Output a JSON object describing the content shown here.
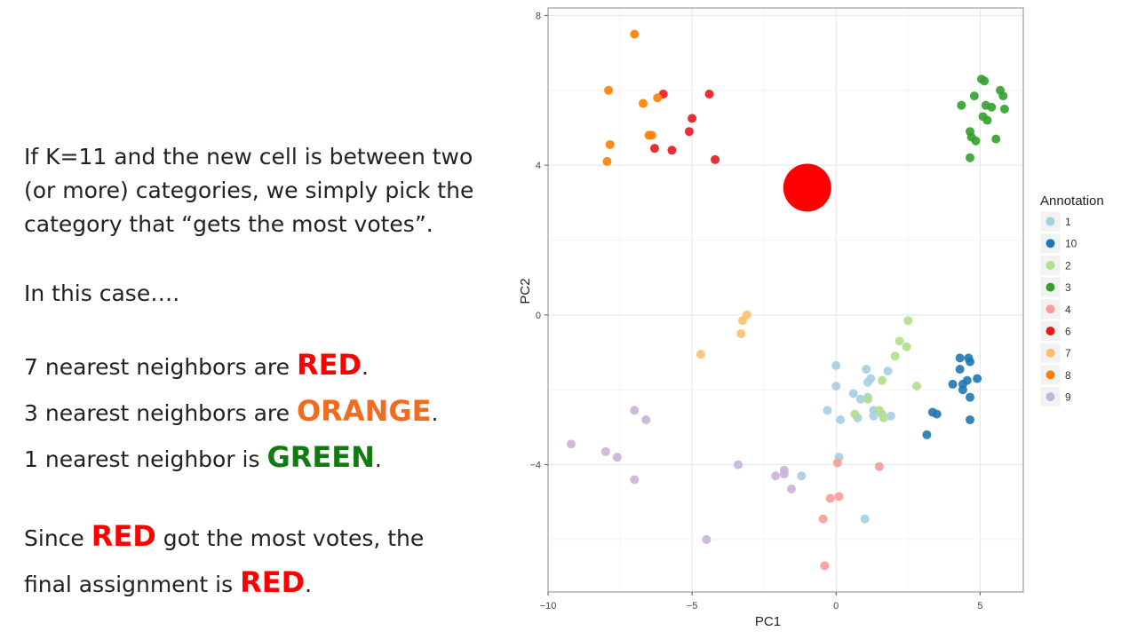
{
  "text": {
    "p1": "If K=11 and the new cell is between two (or more) categories, we simply pick the category that “gets the most votes”.",
    "p2": "In this case….",
    "l1_pre": "7 nearest neighbors are ",
    "l1_word": "RED",
    "l1_post": ".",
    "l2_pre": "3 nearest neighbors are ",
    "l2_word": "ORANGE",
    "l2_post": ".",
    "l3_pre": "1 nearest neighbor is ",
    "l3_word": "GREEN",
    "l3_post": ".",
    "l4_pre": "Since ",
    "l4_word": "RED",
    "l4_post": " got the most votes, the",
    "l5_pre": "final assignment is ",
    "l5_word": "RED",
    "l5_post": "."
  },
  "colors": {
    "red_word": "#ff0000",
    "orange_word": "#f26b21",
    "green_word": "#117a11",
    "new_cell": "#ff0000"
  },
  "chart_data": {
    "type": "scatter",
    "xlabel": "PC1",
    "ylabel": "PC2",
    "xlim": [
      -10,
      6.5
    ],
    "ylim": [
      -7.4,
      8.2
    ],
    "xticks": [
      -10,
      -5,
      0,
      5
    ],
    "yticks": [
      -4,
      0,
      4,
      8
    ],
    "grid": true,
    "legend": {
      "title": "Annotation",
      "position": "right"
    },
    "new_cell": {
      "x": -1.0,
      "y": 3.4
    },
    "series": [
      {
        "name": "1",
        "color": "#a6cee3",
        "points": [
          [
            0,
            -1.35
          ],
          [
            0,
            -1.9
          ],
          [
            1.05,
            -1.45
          ],
          [
            1.2,
            -1.7
          ],
          [
            1.1,
            -1.8
          ],
          [
            1.8,
            -1.5
          ],
          [
            0.6,
            -2.1
          ],
          [
            0.85,
            -2.25
          ],
          [
            1.1,
            -2.2
          ],
          [
            -0.3,
            -2.55
          ],
          [
            0.15,
            -2.8
          ],
          [
            0.75,
            -2.75
          ],
          [
            1.3,
            -2.55
          ],
          [
            1.3,
            -2.7
          ],
          [
            1.6,
            -2.65
          ],
          [
            1.9,
            -2.7
          ],
          [
            0.1,
            -3.8
          ],
          [
            -1.2,
            -4.3
          ],
          [
            1.0,
            -5.45
          ]
        ]
      },
      {
        "name": "10",
        "color": "#1f78b4",
        "points": [
          [
            4.3,
            -1.15
          ],
          [
            4.6,
            -1.15
          ],
          [
            4.65,
            -1.25
          ],
          [
            4.3,
            -1.45
          ],
          [
            4.05,
            -1.85
          ],
          [
            4.4,
            -1.85
          ],
          [
            4.55,
            -1.75
          ],
          [
            4.9,
            -1.7
          ],
          [
            4.4,
            -2.0
          ],
          [
            4.65,
            -2.2
          ],
          [
            3.35,
            -2.6
          ],
          [
            3.5,
            -2.65
          ],
          [
            4.65,
            -2.8
          ],
          [
            3.15,
            -3.2
          ]
        ]
      },
      {
        "name": "2",
        "color": "#b2df8a",
        "points": [
          [
            2.5,
            -0.15
          ],
          [
            2.2,
            -0.7
          ],
          [
            2.45,
            -0.85
          ],
          [
            2.05,
            -1.1
          ],
          [
            1.6,
            -1.75
          ],
          [
            2.8,
            -1.9
          ],
          [
            1.1,
            -2.25
          ],
          [
            0.65,
            -2.65
          ],
          [
            1.5,
            -2.55
          ],
          [
            1.65,
            -2.75
          ]
        ]
      },
      {
        "name": "3",
        "color": "#33a02c",
        "points": [
          [
            5.05,
            6.3
          ],
          [
            5.15,
            6.25
          ],
          [
            5.7,
            6.0
          ],
          [
            5.8,
            5.85
          ],
          [
            4.8,
            5.85
          ],
          [
            4.35,
            5.6
          ],
          [
            5.2,
            5.6
          ],
          [
            5.4,
            5.55
          ],
          [
            5.85,
            5.5
          ],
          [
            5.1,
            5.3
          ],
          [
            5.25,
            5.2
          ],
          [
            4.65,
            4.9
          ],
          [
            4.7,
            4.75
          ],
          [
            4.85,
            4.65
          ],
          [
            5.55,
            4.7
          ],
          [
            4.65,
            4.2
          ]
        ]
      },
      {
        "name": "4",
        "color": "#fb9a99",
        "points": [
          [
            0.05,
            -3.95
          ],
          [
            1.5,
            -4.05
          ],
          [
            -0.2,
            -4.9
          ],
          [
            0.1,
            -4.85
          ],
          [
            -0.45,
            -5.45
          ],
          [
            -0.4,
            -6.7
          ]
        ]
      },
      {
        "name": "6",
        "color": "#e31a1c",
        "points": [
          [
            -6.0,
            5.9
          ],
          [
            -4.4,
            5.9
          ],
          [
            -5.0,
            5.25
          ],
          [
            -5.1,
            4.9
          ],
          [
            -6.3,
            4.45
          ],
          [
            -5.7,
            4.4
          ],
          [
            -4.2,
            4.15
          ]
        ]
      },
      {
        "name": "7",
        "color": "#fdbf6f",
        "points": [
          [
            -3.1,
            0.0
          ],
          [
            -3.25,
            -0.15
          ],
          [
            -3.3,
            -0.5
          ],
          [
            -4.7,
            -1.05
          ]
        ]
      },
      {
        "name": "8",
        "color": "#ff7f00",
        "points": [
          [
            -7.0,
            7.5
          ],
          [
            -7.9,
            6.0
          ],
          [
            -6.2,
            5.8
          ],
          [
            -6.7,
            5.65
          ],
          [
            -6.5,
            4.8
          ],
          [
            -6.4,
            4.8
          ],
          [
            -7.85,
            4.55
          ],
          [
            -7.95,
            4.1
          ]
        ]
      },
      {
        "name": "9",
        "color": "#cab2d6",
        "points": [
          [
            -7.0,
            -2.55
          ],
          [
            -6.6,
            -2.8
          ],
          [
            -9.2,
            -3.45
          ],
          [
            -8.0,
            -3.65
          ],
          [
            -7.6,
            -3.8
          ],
          [
            -3.4,
            -4.0
          ],
          [
            -1.8,
            -4.15
          ],
          [
            -1.8,
            -4.25
          ],
          [
            -2.1,
            -4.3
          ],
          [
            -7.0,
            -4.4
          ],
          [
            -1.55,
            -4.65
          ],
          [
            -4.5,
            -6.0
          ]
        ]
      }
    ]
  }
}
